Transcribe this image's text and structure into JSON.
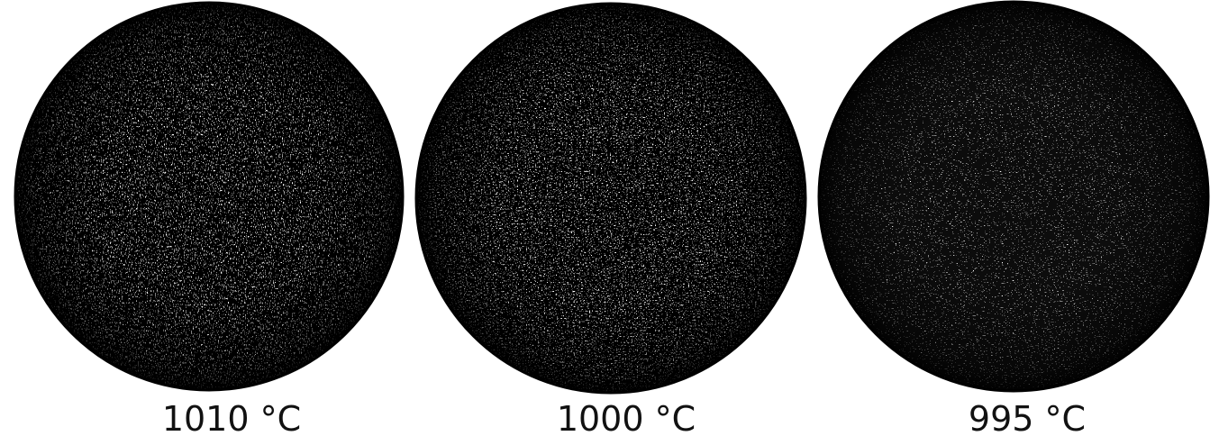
{
  "panels": [
    {
      "label": "1010 °C"
    },
    {
      "label": "1000 °C"
    },
    {
      "label": "995 °C"
    }
  ]
}
